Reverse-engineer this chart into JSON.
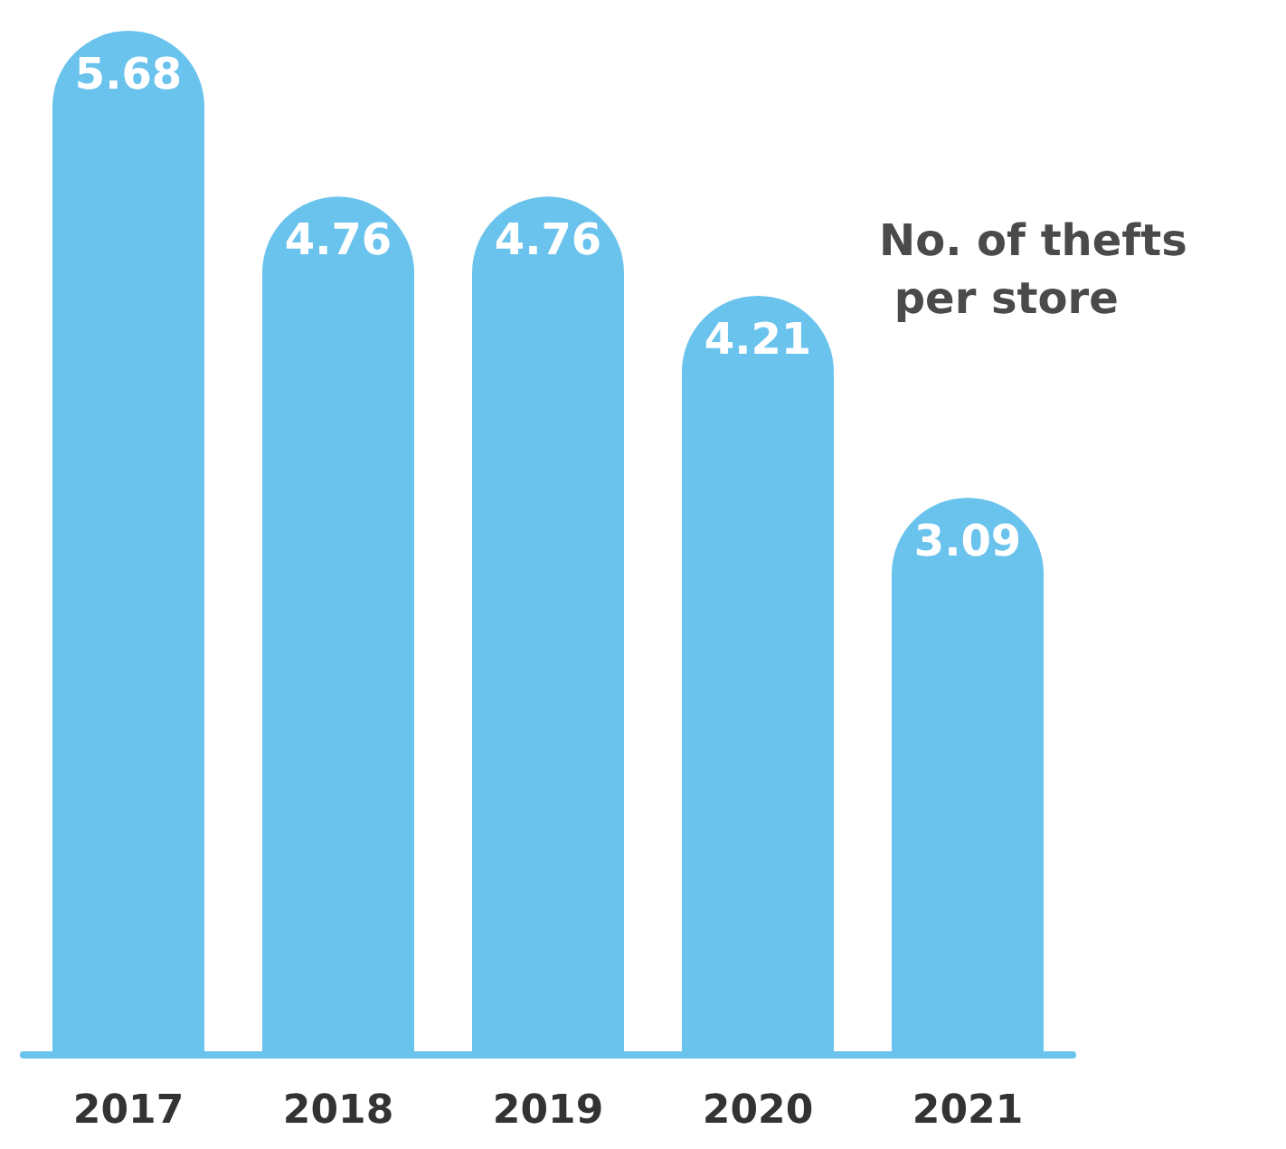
{
  "chart_data": {
    "type": "bar",
    "title": "No. of thefts per store",
    "categories": [
      "2017",
      "2018",
      "2019",
      "2020",
      "2021"
    ],
    "values": [
      5.68,
      4.76,
      4.76,
      4.21,
      3.09
    ],
    "color": "#6ac3ed",
    "data_labels": true
  }
}
